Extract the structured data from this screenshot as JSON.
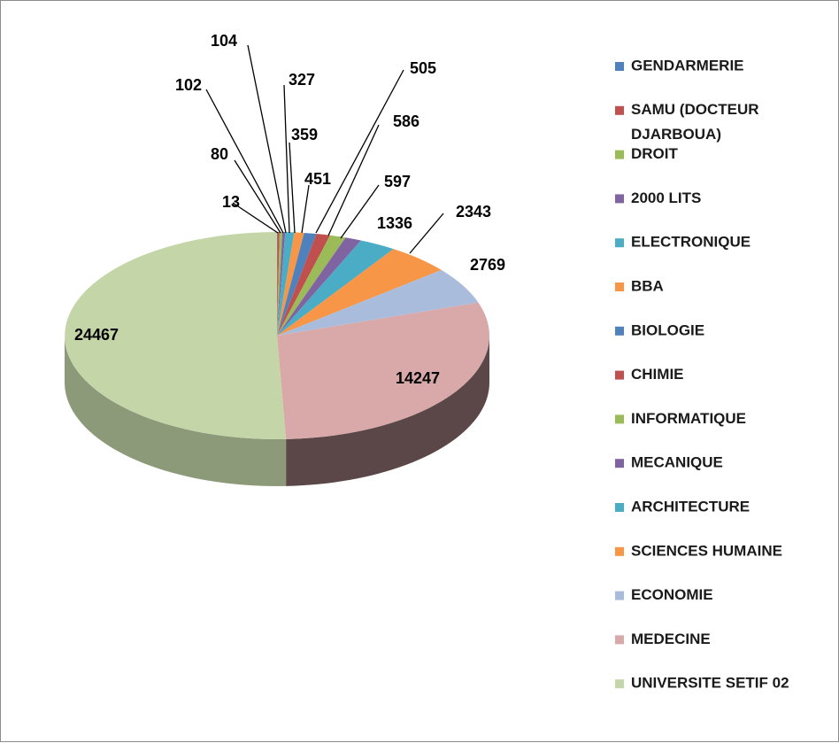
{
  "chart_data": {
    "type": "pie",
    "style": "3d",
    "title": "",
    "legend_position": "right",
    "slices": [
      {
        "label": "GENDARMERIE",
        "value": 13,
        "color": "#4F81BD"
      },
      {
        "label": "SAMU (DOCTEUR DJARBOUA)",
        "value": 80,
        "color": "#C0504D"
      },
      {
        "label": "DROIT",
        "value": 102,
        "color": "#9BBB59"
      },
      {
        "label": "2000 LITS",
        "value": 104,
        "color": "#8064A2"
      },
      {
        "label": "ELECTRONIQUE",
        "value": 327,
        "color": "#4BACC6"
      },
      {
        "label": "BBA",
        "value": 359,
        "color": "#F79646"
      },
      {
        "label": "BIOLOGIE",
        "value": 451,
        "color": "#4F81BD"
      },
      {
        "label": "CHIMIE",
        "value": 505,
        "color": "#C0504D"
      },
      {
        "label": "INFORMATIQUE",
        "value": 586,
        "color": "#9BBB59"
      },
      {
        "label": "MECANIQUE",
        "value": 597,
        "color": "#8064A2"
      },
      {
        "label": "ARCHITECTURE",
        "value": 1336,
        "color": "#4BACC6"
      },
      {
        "label": "SCIENCES HUMAINE",
        "value": 2343,
        "color": "#F79646"
      },
      {
        "label": "ECONOMIE",
        "value": 2769,
        "color": "#A9BCDC"
      },
      {
        "label": "MEDECINE",
        "value": 14247,
        "color": "#D9A8A8"
      },
      {
        "label": "UNIVERSITE SETIF 02",
        "value": 24467,
        "color": "#C4D6A8"
      }
    ]
  }
}
